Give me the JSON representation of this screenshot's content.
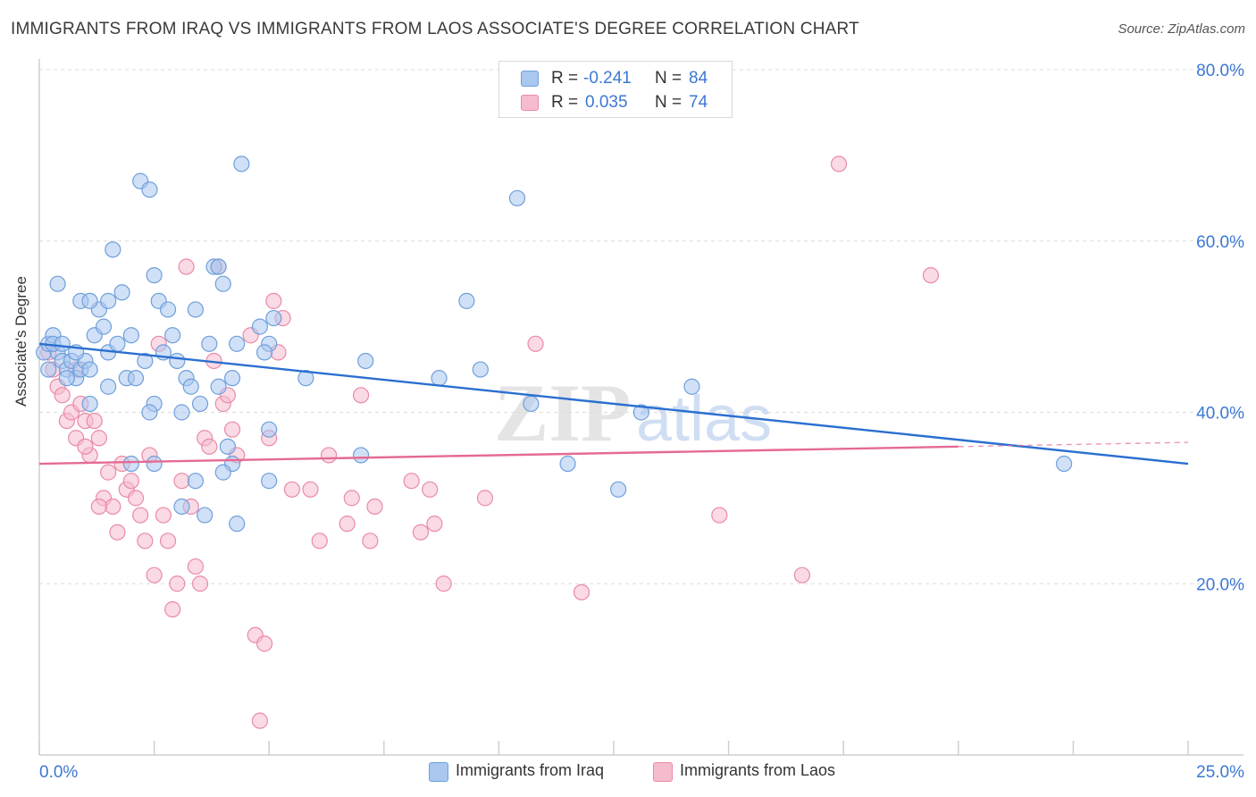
{
  "title": "IMMIGRANTS FROM IRAQ VS IMMIGRANTS FROM LAOS ASSOCIATE'S DEGREE CORRELATION CHART",
  "source": "Source: ZipAtlas.com",
  "watermark": {
    "zip": "ZIP",
    "atlas": "atlas"
  },
  "legend": {
    "iraq": {
      "r_label": "R =",
      "r_value": "-0.241",
      "n_label": "N =",
      "n_value": "84"
    },
    "laos": {
      "r_label": "R =",
      "r_value": "0.035",
      "n_label": "N =",
      "n_value": "74"
    }
  },
  "colors": {
    "iraq_fill": "#a9c7ef",
    "iraq_stroke": "#6f9fdc",
    "iraq_line": "#2a6fd0",
    "laos_fill": "#f6bccd",
    "laos_stroke": "#e98aa8",
    "laos_line": "#e56a93",
    "value_blue": "#3b78d4",
    "grid": "#dcdcdc"
  },
  "chart_data": {
    "type": "scatter",
    "title": "IMMIGRANTS FROM IRAQ VS IMMIGRANTS FROM LAOS ASSOCIATE'S DEGREE CORRELATION CHART",
    "xlabel": "",
    "ylabel": "Associate's Degree",
    "xlim": [
      0,
      25
    ],
    "ylim": [
      0,
      80
    ],
    "x_tick_labels": [
      "0.0%",
      "25.0%"
    ],
    "y_tick_labels": [
      "20.0%",
      "40.0%",
      "60.0%",
      "80.0%"
    ],
    "y_ticks": [
      20,
      40,
      60,
      80
    ],
    "grid": true,
    "legend_position": "bottom",
    "series": [
      {
        "name": "Immigrants from Iraq",
        "points": [
          [
            0.1,
            47
          ],
          [
            0.2,
            48
          ],
          [
            0.3,
            49
          ],
          [
            0.4,
            47
          ],
          [
            0.2,
            45
          ],
          [
            0.5,
            46
          ],
          [
            0.6,
            45
          ],
          [
            0.7,
            46
          ],
          [
            0.8,
            44
          ],
          [
            0.9,
            45
          ],
          [
            1.0,
            46
          ],
          [
            1.1,
            45
          ],
          [
            0.3,
            48
          ],
          [
            0.5,
            48
          ],
          [
            0.8,
            47
          ],
          [
            1.2,
            49
          ],
          [
            1.4,
            50
          ],
          [
            1.5,
            47
          ],
          [
            1.7,
            48
          ],
          [
            0.6,
            44
          ],
          [
            1.9,
            44
          ],
          [
            2.1,
            44
          ],
          [
            2.3,
            46
          ],
          [
            2.5,
            41
          ],
          [
            2.0,
            49
          ],
          [
            2.7,
            47
          ],
          [
            2.9,
            49
          ],
          [
            3.0,
            46
          ],
          [
            3.2,
            44
          ],
          [
            1.3,
            52
          ],
          [
            1.5,
            53
          ],
          [
            1.8,
            54
          ],
          [
            0.4,
            55
          ],
          [
            0.9,
            53
          ],
          [
            1.1,
            53
          ],
          [
            2.5,
            56
          ],
          [
            2.6,
            53
          ],
          [
            2.8,
            52
          ],
          [
            3.4,
            52
          ],
          [
            4.0,
            55
          ],
          [
            2.2,
            67
          ],
          [
            2.4,
            66
          ],
          [
            4.4,
            69
          ],
          [
            1.6,
            59
          ],
          [
            3.8,
            57
          ],
          [
            3.9,
            57
          ],
          [
            4.8,
            50
          ],
          [
            5.0,
            48
          ],
          [
            5.1,
            51
          ],
          [
            4.3,
            48
          ],
          [
            3.7,
            48
          ],
          [
            3.3,
            43
          ],
          [
            3.5,
            41
          ],
          [
            3.1,
            40
          ],
          [
            2.4,
            40
          ],
          [
            1.1,
            41
          ],
          [
            1.5,
            43
          ],
          [
            3.9,
            43
          ],
          [
            4.2,
            44
          ],
          [
            4.9,
            47
          ],
          [
            5.8,
            44
          ],
          [
            7.1,
            46
          ],
          [
            5.0,
            38
          ],
          [
            4.1,
            36
          ],
          [
            4.2,
            34
          ],
          [
            4.0,
            33
          ],
          [
            3.4,
            32
          ],
          [
            2.5,
            34
          ],
          [
            2.0,
            34
          ],
          [
            3.1,
            29
          ],
          [
            3.6,
            28
          ],
          [
            4.3,
            27
          ],
          [
            5.0,
            32
          ],
          [
            7.0,
            35
          ],
          [
            8.7,
            44
          ],
          [
            9.3,
            53
          ],
          [
            9.6,
            45
          ],
          [
            10.4,
            65
          ],
          [
            10.7,
            41
          ],
          [
            11.5,
            34
          ],
          [
            12.6,
            31
          ],
          [
            13.1,
            40
          ],
          [
            14.2,
            43
          ],
          [
            22.3,
            34
          ]
        ]
      },
      {
        "name": "Immigrants from Laos",
        "points": [
          [
            0.2,
            47
          ],
          [
            0.3,
            45
          ],
          [
            0.4,
            43
          ],
          [
            0.5,
            42
          ],
          [
            0.6,
            39
          ],
          [
            0.7,
            40
          ],
          [
            0.8,
            37
          ],
          [
            0.9,
            41
          ],
          [
            1.0,
            39
          ],
          [
            1.1,
            35
          ],
          [
            1.2,
            39
          ],
          [
            1.3,
            37
          ],
          [
            1.4,
            30
          ],
          [
            1.5,
            33
          ],
          [
            1.6,
            29
          ],
          [
            1.7,
            26
          ],
          [
            1.8,
            34
          ],
          [
            1.9,
            31
          ],
          [
            2.0,
            32
          ],
          [
            2.1,
            30
          ],
          [
            2.2,
            28
          ],
          [
            2.3,
            25
          ],
          [
            2.4,
            35
          ],
          [
            2.5,
            21
          ],
          [
            2.6,
            48
          ],
          [
            2.7,
            28
          ],
          [
            2.8,
            25
          ],
          [
            2.9,
            17
          ],
          [
            3.0,
            20
          ],
          [
            3.1,
            32
          ],
          [
            3.2,
            57
          ],
          [
            3.3,
            29
          ],
          [
            3.4,
            22
          ],
          [
            3.5,
            20
          ],
          [
            3.6,
            37
          ],
          [
            3.7,
            36
          ],
          [
            3.8,
            46
          ],
          [
            3.9,
            57
          ],
          [
            4.0,
            41
          ],
          [
            4.1,
            42
          ],
          [
            4.2,
            38
          ],
          [
            4.3,
            35
          ],
          [
            4.6,
            49
          ],
          [
            4.7,
            14
          ],
          [
            4.8,
            4
          ],
          [
            4.9,
            13
          ],
          [
            5.0,
            37
          ],
          [
            5.1,
            53
          ],
          [
            5.2,
            47
          ],
          [
            5.3,
            51
          ],
          [
            5.5,
            31
          ],
          [
            5.9,
            31
          ],
          [
            6.1,
            25
          ],
          [
            6.3,
            35
          ],
          [
            6.7,
            27
          ],
          [
            6.8,
            30
          ],
          [
            7.0,
            42
          ],
          [
            7.2,
            25
          ],
          [
            7.3,
            29
          ],
          [
            8.1,
            32
          ],
          [
            8.3,
            26
          ],
          [
            8.5,
            31
          ],
          [
            8.6,
            27
          ],
          [
            8.8,
            20
          ],
          [
            9.7,
            30
          ],
          [
            10.8,
            48
          ],
          [
            11.8,
            19
          ],
          [
            14.8,
            28
          ],
          [
            16.6,
            21
          ],
          [
            17.4,
            69
          ],
          [
            19.4,
            56
          ],
          [
            0.8,
            45
          ],
          [
            1.0,
            36
          ],
          [
            1.3,
            29
          ]
        ]
      }
    ],
    "trend_lines": [
      {
        "series": "Immigrants from Iraq",
        "x": [
          0,
          25
        ],
        "y": [
          48,
          34
        ],
        "style": "solid"
      },
      {
        "series": "Immigrants from Laos",
        "x": [
          0,
          20
        ],
        "y": [
          34,
          36
        ],
        "style": "solid"
      },
      {
        "series": "Immigrants from Laos",
        "x": [
          20,
          25
        ],
        "y": [
          36,
          36.5
        ],
        "style": "dashed"
      }
    ]
  }
}
